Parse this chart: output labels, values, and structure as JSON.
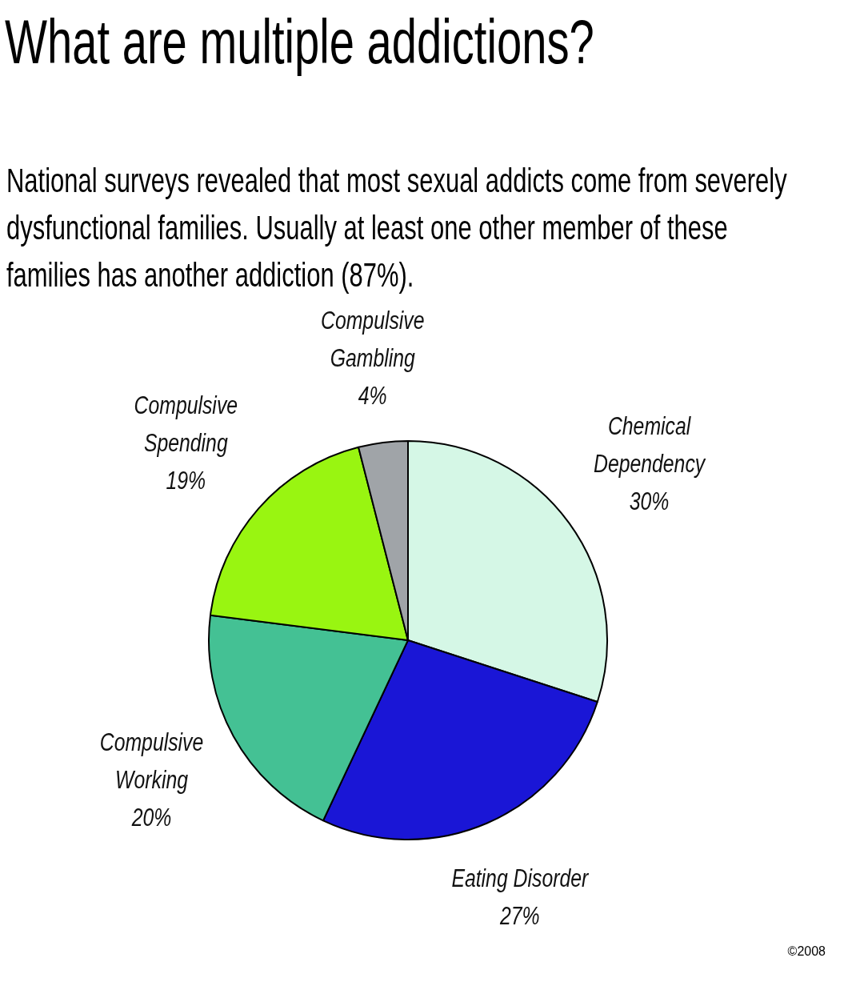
{
  "chart_data": {
    "type": "pie",
    "title": "What are multiple addictions?",
    "subtitle": "National surveys revealed that most sexual addicts come from severely dysfunctional families. Usually at least one other member of these families has another addiction (87%).",
    "categories": [
      "Chemical Dependency",
      "Eating Disorder",
      "Compulsive Working",
      "Compulsive Spending",
      "Compulsive Gambling"
    ],
    "values": [
      30,
      27,
      20,
      19,
      4
    ],
    "colors": [
      "#d5f7e6",
      "#1a16d6",
      "#44c194",
      "#99f511",
      "#a0a4a8"
    ],
    "value_labels": [
      "30%",
      "27%",
      "20%",
      "19%",
      "4%"
    ],
    "annotations": [
      "©2008"
    ]
  }
}
